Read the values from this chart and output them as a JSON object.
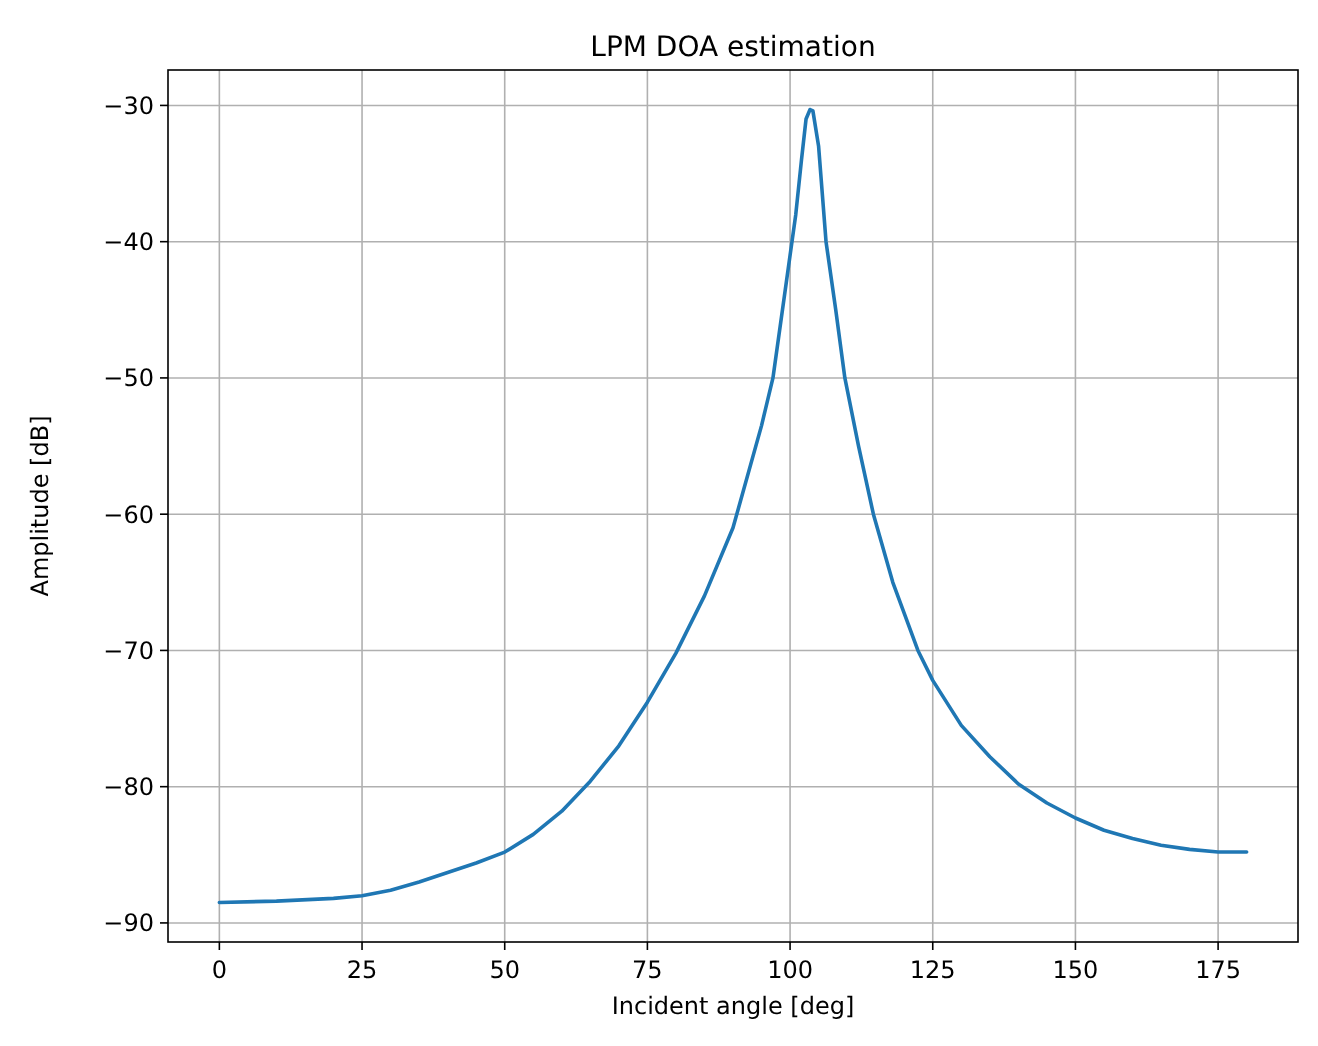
{
  "chart_data": {
    "type": "line",
    "title": "LPM DOA estimation",
    "xlabel": "Incident angle [deg]",
    "ylabel": "Amplitude [dB]",
    "xlim": [
      -9,
      189
    ],
    "xticks": [
      0,
      25,
      50,
      75,
      100,
      125,
      150,
      175
    ],
    "ylim": [
      -91.4,
      -27.4
    ],
    "yticks": [
      {
        "value": -90,
        "label": "−90"
      },
      {
        "value": -80,
        "label": "−80"
      },
      {
        "value": -70,
        "label": "−70"
      },
      {
        "value": -60,
        "label": "−60"
      },
      {
        "value": -50,
        "label": "−50"
      },
      {
        "value": -40,
        "label": "−40"
      },
      {
        "value": -30,
        "label": "−30"
      }
    ],
    "grid": true,
    "series": [
      {
        "color": "#1f77b4",
        "x": [
          0,
          10,
          20,
          25,
          30,
          35,
          40,
          45,
          50,
          55,
          60,
          65,
          70,
          75,
          80,
          85,
          90,
          95,
          97,
          99,
          101,
          102,
          102.8,
          103.5,
          104,
          105,
          106.3,
          108,
          109.6,
          112,
          114.6,
          118,
          122.4,
          125,
          130,
          135,
          140,
          145,
          150,
          155,
          160,
          165,
          170,
          175,
          180
        ],
        "values": [
          -88.5,
          -88.4,
          -88.2,
          -88.0,
          -87.6,
          -87.0,
          -86.3,
          -85.6,
          -84.8,
          -83.5,
          -81.8,
          -79.6,
          -77.0,
          -73.8,
          -70.2,
          -66.0,
          -61.0,
          -53.5,
          -50.0,
          -44.0,
          -38.0,
          -34.0,
          -31.0,
          -30.3,
          -30.4,
          -33.0,
          -40.0,
          -45.0,
          -50.0,
          -55.0,
          -60.0,
          -65.0,
          -70.0,
          -72.2,
          -75.5,
          -77.8,
          -79.8,
          -81.2,
          -82.3,
          -83.2,
          -83.8,
          -84.3,
          -84.6,
          -84.8,
          -84.8
        ]
      }
    ]
  }
}
